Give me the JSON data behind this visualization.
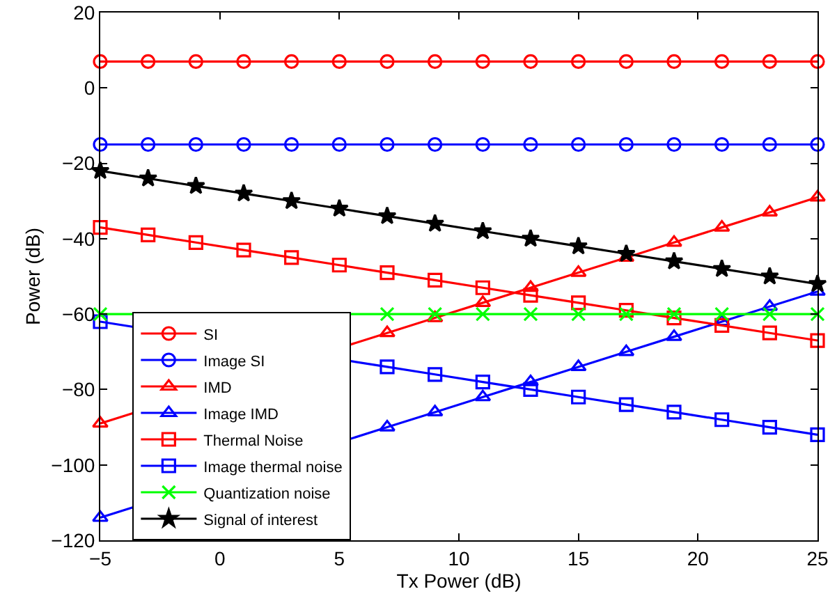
{
  "chart_data": {
    "type": "line",
    "xlabel": "Tx Power (dB)",
    "ylabel": "Power (dB)",
    "x": [
      -5,
      -3,
      -1,
      1,
      3,
      5,
      7,
      9,
      11,
      13,
      15,
      17,
      19,
      21,
      23,
      25
    ],
    "xlim": [
      -5,
      25
    ],
    "xticks": [
      -5,
      0,
      5,
      10,
      15,
      20,
      25
    ],
    "ylim": [
      -120,
      20
    ],
    "yticks": [
      -120,
      -100,
      -80,
      -60,
      -40,
      -20,
      0,
      20
    ],
    "grid": false,
    "legend": "bottom left",
    "line_style": "solid",
    "series": [
      {
        "name": "SI",
        "color": "#ff0000",
        "marker": "circle",
        "values": [
          7,
          7,
          7,
          7,
          7,
          7,
          7,
          7,
          7,
          7,
          7,
          7,
          7,
          7,
          7,
          7
        ]
      },
      {
        "name": "Image SI",
        "color": "#0000ff",
        "marker": "circle",
        "values": [
          -15,
          -15,
          -15,
          -15,
          -15,
          -15,
          -15,
          -15,
          -15,
          -15,
          -15,
          -15,
          -15,
          -15,
          -15,
          -15
        ]
      },
      {
        "name": "IMD",
        "color": "#ff0000",
        "marker": "triangle",
        "values": [
          -89,
          null,
          null,
          null,
          null,
          null,
          -65,
          -61,
          -57,
          -53,
          -49,
          -45,
          -41,
          -37,
          -33,
          -29
        ]
      },
      {
        "name": "Image IMD",
        "color": "#0000ff",
        "marker": "triangle",
        "values": [
          -114,
          null,
          null,
          null,
          null,
          null,
          -90,
          -86,
          -82,
          -78,
          -74,
          -70,
          -66,
          -62,
          -58,
          -54
        ]
      },
      {
        "name": "Thermal Noise",
        "color": "#ff0000",
        "marker": "square",
        "values": [
          -37,
          -39,
          -41,
          -43,
          -45,
          -47,
          -49,
          -51,
          -53,
          -55,
          -57,
          -59,
          -61,
          -63,
          -65,
          -67
        ]
      },
      {
        "name": "Image thermal noise",
        "color": "#0000ff",
        "marker": "square",
        "values": [
          -62,
          null,
          null,
          null,
          null,
          null,
          -74,
          -76,
          -78,
          -80,
          -82,
          -84,
          -86,
          -88,
          -90,
          -92
        ]
      },
      {
        "name": "Quantization noise",
        "color": "#00ff00",
        "marker": "cross",
        "values": [
          -60,
          null,
          null,
          null,
          null,
          null,
          -60,
          -60,
          -60,
          -60,
          -60,
          -60,
          -60,
          -60,
          -60,
          -60
        ]
      },
      {
        "name": "Signal of interest",
        "color": "#000000",
        "marker": "star",
        "values": [
          -22,
          -24,
          -26,
          -28,
          -30,
          -32,
          -34,
          -36,
          -38,
          -40,
          -42,
          -44,
          -46,
          -48,
          -50,
          -52
        ]
      }
    ]
  }
}
